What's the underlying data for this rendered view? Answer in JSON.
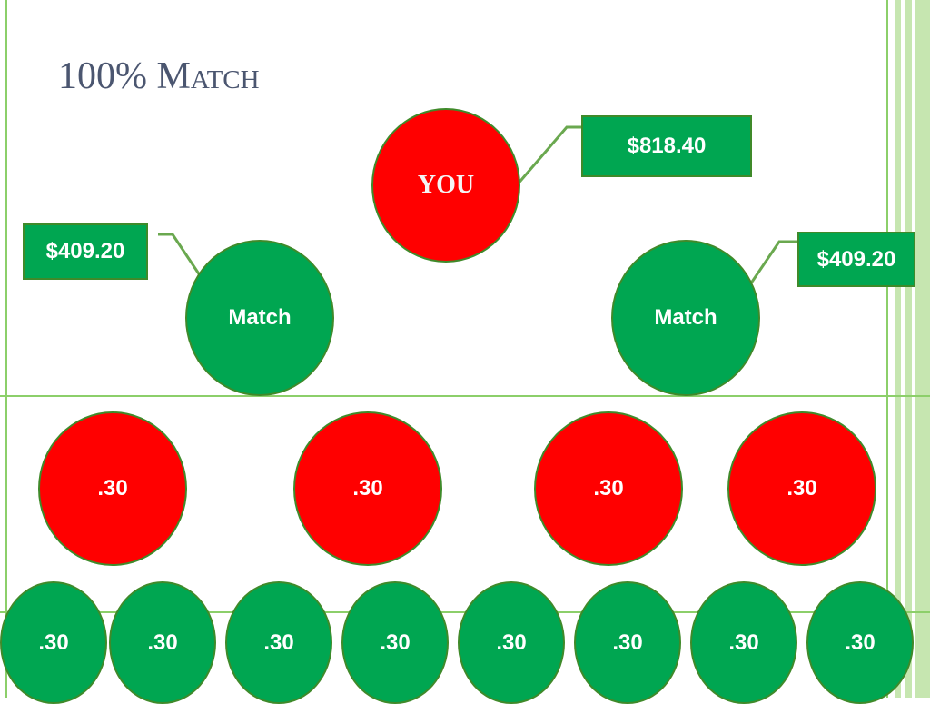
{
  "title": {
    "main": "100% M",
    "small_caps": "atch"
  },
  "colors": {
    "red_node": "#ff0000",
    "green_node": "#00a651",
    "node_border": "#3f8a2a",
    "frame_green": "#8ccf6a",
    "title_color": "#4b5670"
  },
  "you_node": {
    "label": "YOU",
    "amount": "$818.40"
  },
  "match_nodes": [
    {
      "label": "Match",
      "amount": "$409.20"
    },
    {
      "label": "Match",
      "amount": "$409.20"
    }
  ],
  "tier2_nodes": [
    ".30",
    ".30",
    ".30",
    ".30"
  ],
  "tier3_nodes": [
    ".30",
    ".30",
    ".30",
    ".30",
    ".30",
    ".30",
    ".30",
    ".30"
  ]
}
